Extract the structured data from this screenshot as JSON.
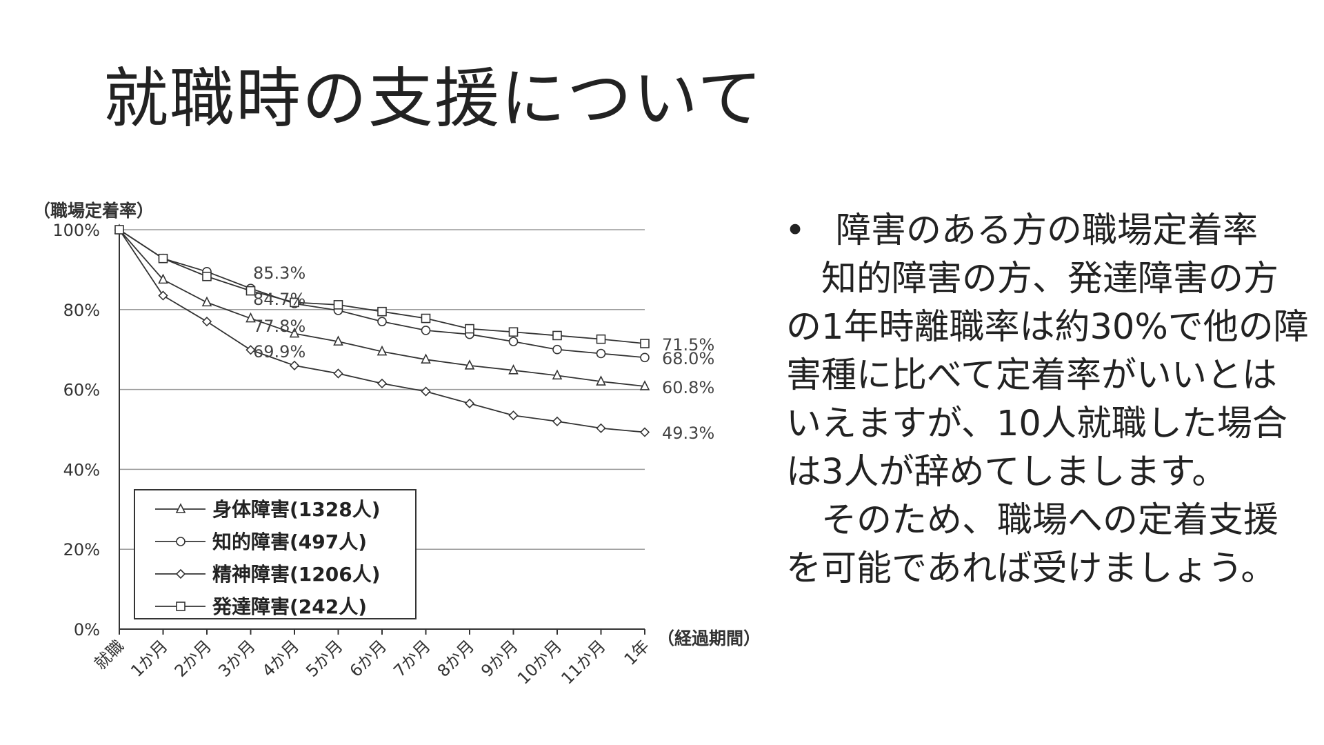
{
  "slide": {
    "title": "就職時の支援について",
    "bullet": "•",
    "paragraphs": [
      "障害のある方の職場定着率",
      "知的障害の方、発達障害の方の1年時離職率は約30%で他の障害種に比べて定着率がいいとはいえますが、10人就職した場合は3人が辞めてしまします。",
      "そのため、職場への定着支援を可能であれば受けましょう。"
    ]
  },
  "chart_data": {
    "type": "line",
    "ylabel": "（職場定着率）",
    "xlabel": "（経過期間）",
    "ylim": [
      0,
      100
    ],
    "yticks": [
      "0%",
      "20%",
      "40%",
      "60%",
      "80%",
      "100%"
    ],
    "categories": [
      "就職",
      "1か月",
      "2か月",
      "3か月",
      "4か月",
      "5か月",
      "6か月",
      "7か月",
      "8か月",
      "9か月",
      "10か月",
      "11か月",
      "1年"
    ],
    "series": [
      {
        "name": "身体障害(1328人)",
        "marker": "triangle",
        "values": [
          100,
          87.5,
          81.8,
          77.8,
          74,
          72,
          69.5,
          67.5,
          66,
          64.8,
          63.5,
          62,
          60.8
        ]
      },
      {
        "name": "知的障害(497人)",
        "marker": "circle",
        "values": [
          100,
          92.8,
          89.5,
          85.3,
          81.5,
          79.8,
          77,
          74.8,
          73.8,
          72,
          70,
          69,
          68.0
        ]
      },
      {
        "name": "精神障害(1206人)",
        "marker": "diamond",
        "values": [
          100,
          83.5,
          77,
          69.9,
          66,
          64,
          61.5,
          59.5,
          56.5,
          53.5,
          52,
          50.3,
          49.3
        ]
      },
      {
        "name": "発達障害(242人)",
        "marker": "square",
        "values": [
          100,
          92.8,
          88.3,
          84.7,
          81.8,
          81.2,
          79.5,
          77.8,
          75.2,
          74.4,
          73.5,
          72.6,
          71.5
        ]
      }
    ],
    "annotations": [
      "85.3%",
      "84.7%",
      "77.8%",
      "69.9%",
      "71.5%",
      "68.0%",
      "60.8%",
      "49.3%"
    ],
    "gridlines": true,
    "legend_position": "bottom-left"
  }
}
